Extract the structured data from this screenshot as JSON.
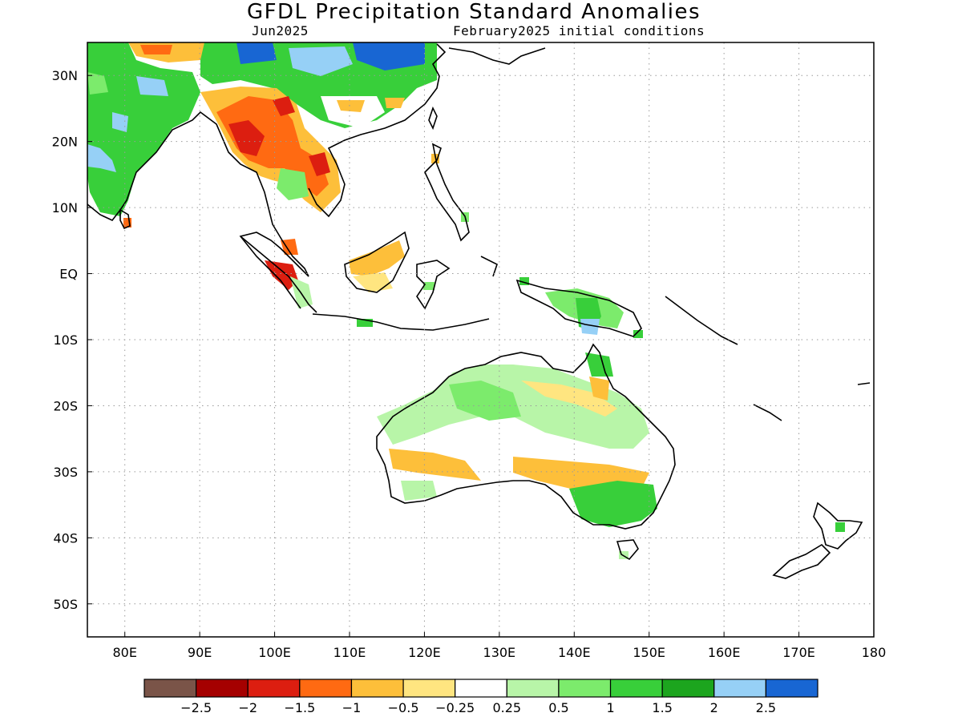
{
  "title": "GFDL Precipitation Standard Anomalies",
  "subtitle_left": "Jun2025",
  "subtitle_right": "February2025 initial conditions",
  "map": {
    "lat_labels": [
      "30N",
      "20N",
      "10N",
      "EQ",
      "10S",
      "20S",
      "30S",
      "40S",
      "50S"
    ],
    "lat_values": [
      30,
      20,
      10,
      0,
      -10,
      -20,
      -30,
      -40,
      -50
    ],
    "lon_labels": [
      "80E",
      "90E",
      "100E",
      "110E",
      "120E",
      "130E",
      "140E",
      "150E",
      "160E",
      "170E",
      "180"
    ],
    "lon_values": [
      80,
      90,
      100,
      110,
      120,
      130,
      140,
      150,
      160,
      170,
      180
    ],
    "lon_range": [
      75,
      180
    ],
    "lat_range": [
      -55,
      35
    ],
    "grid": "dotted"
  },
  "legend": {
    "colors": [
      "#7a5448",
      "#a50000",
      "#dc1e10",
      "#ff6a12",
      "#fdbf3a",
      "#ffe580",
      "#ffffff",
      "#b8f5a8",
      "#7ceb6c",
      "#38cf3a",
      "#1ca51e",
      "#96d0f6",
      "#1866d3"
    ],
    "labels": [
      "-2.5",
      "-2",
      "-1.5",
      "-1",
      "-0.5",
      "-0.25",
      "0.25",
      "0.5",
      "1",
      "1.5",
      "2",
      "2.5"
    ]
  }
}
